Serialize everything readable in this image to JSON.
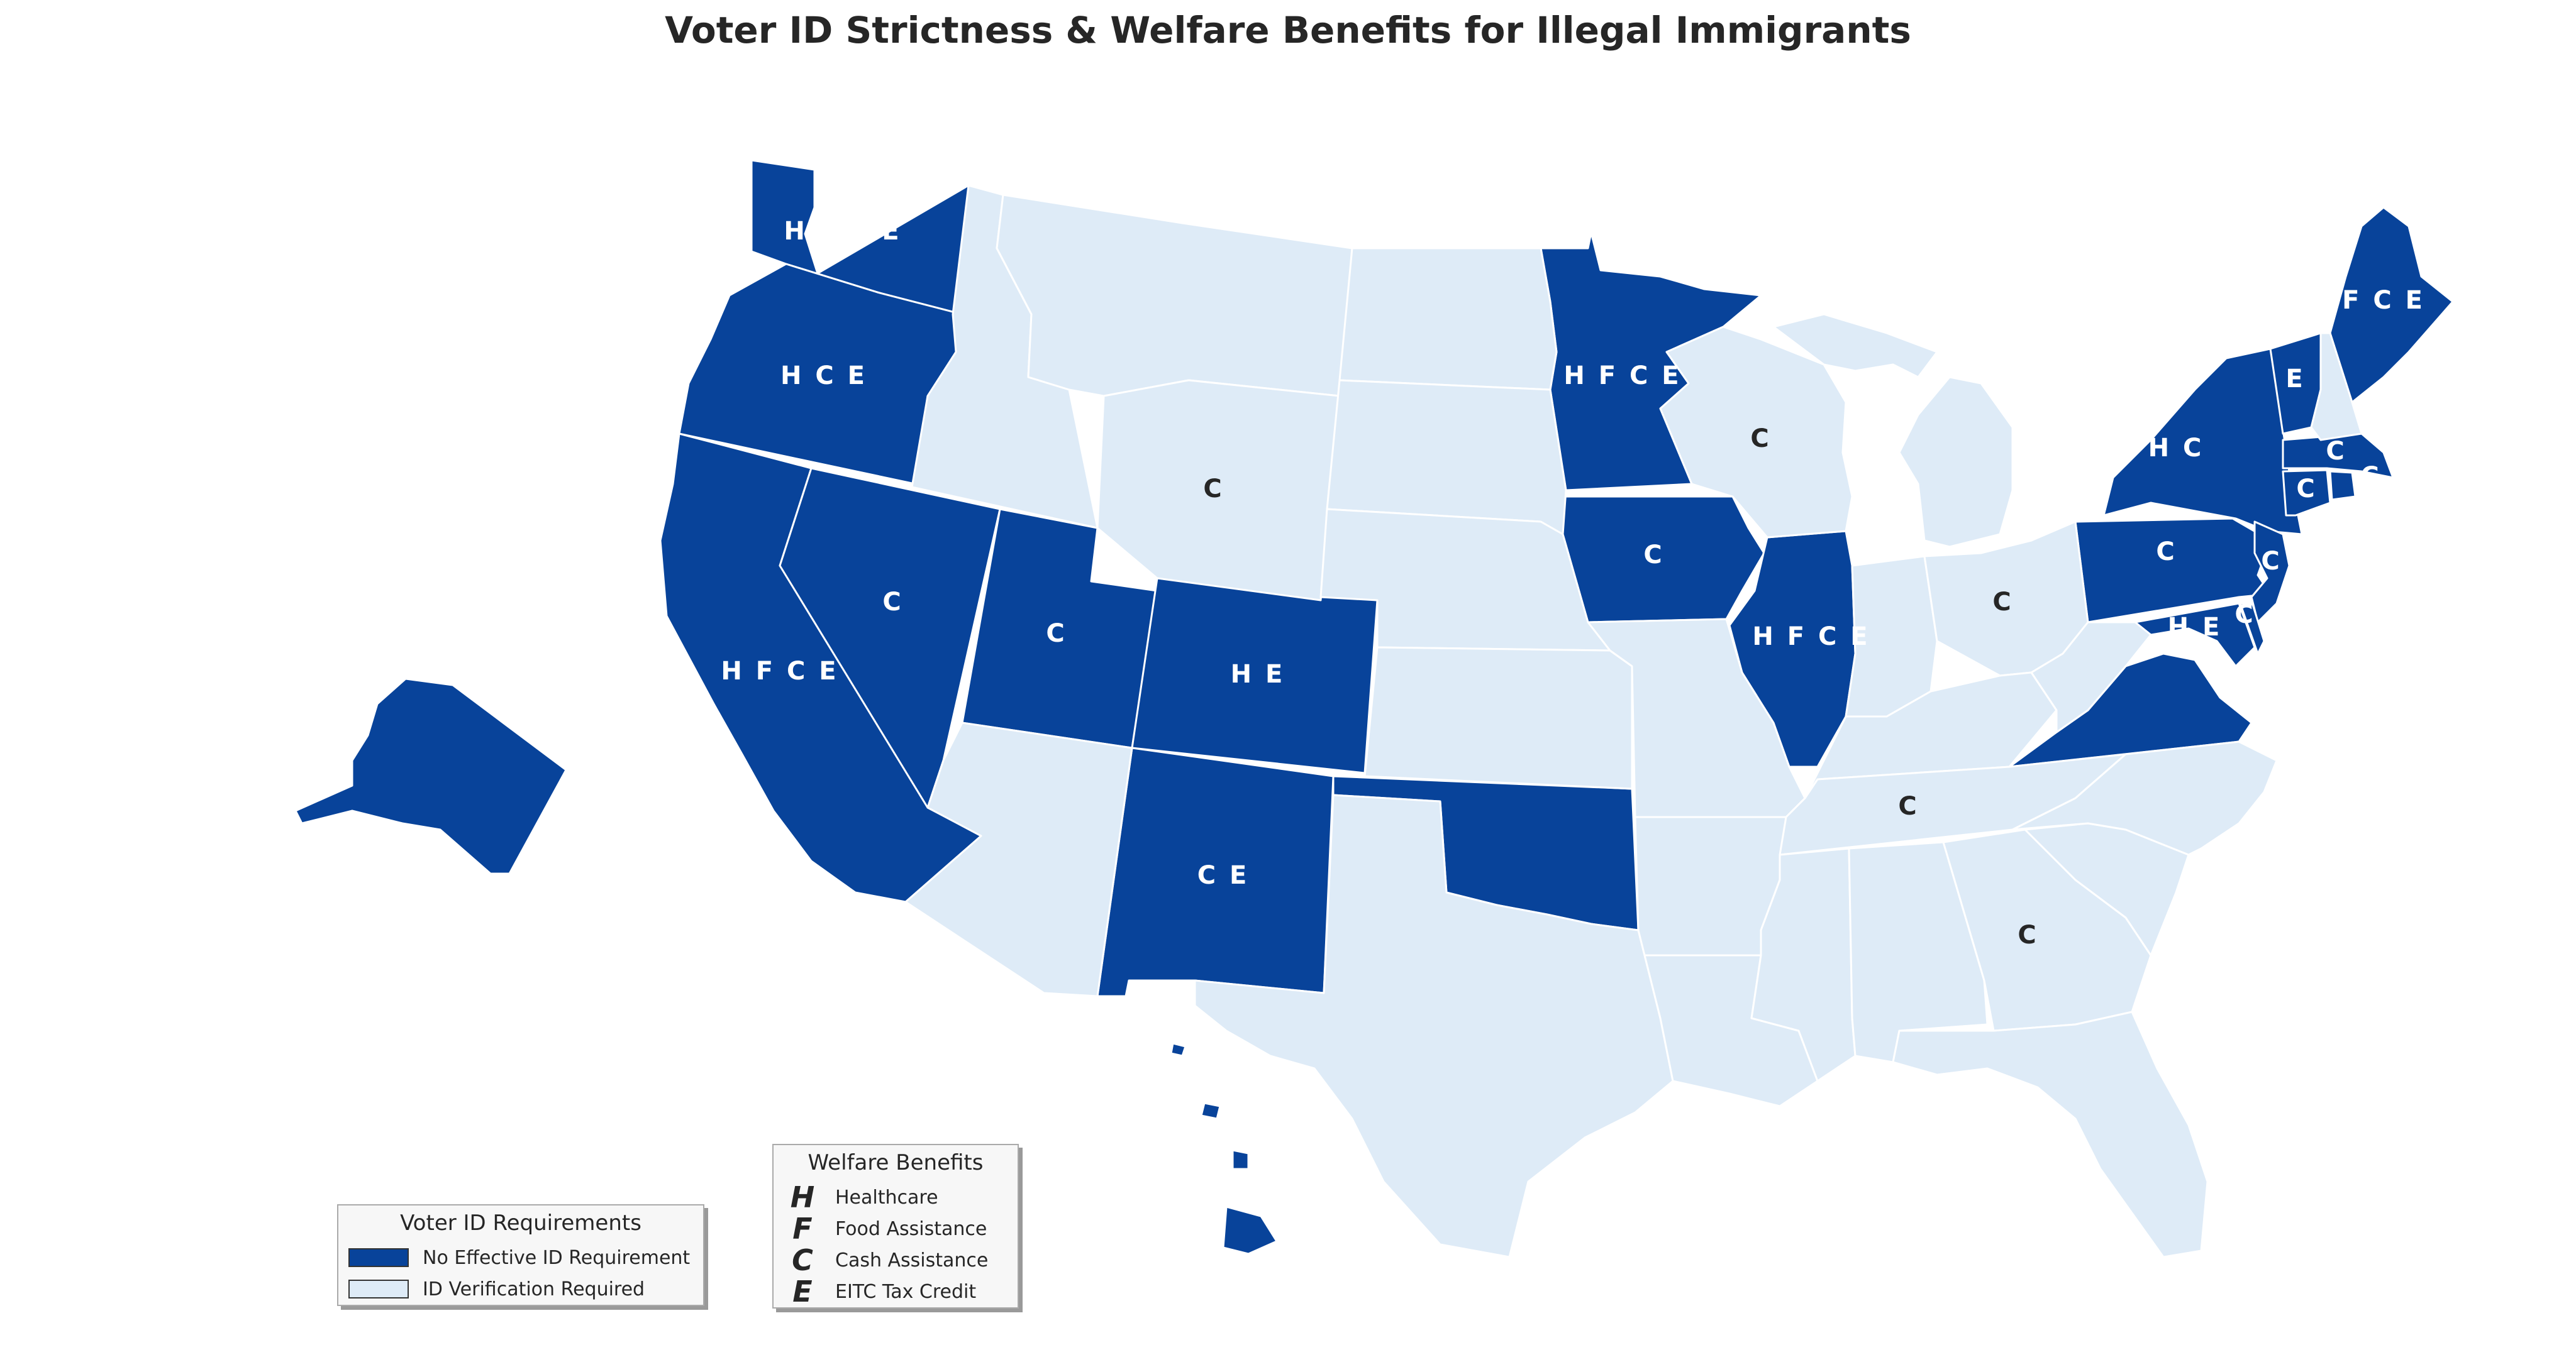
{
  "title": "Voter ID Strictness & Welfare Benefits for Illegal Immigrants",
  "colors": {
    "no_id": "#08439a",
    "id_required": "#deebf7",
    "border": "#ffffff"
  },
  "legend_voter": {
    "title": "Voter ID Requirements",
    "items": [
      {
        "label": "No Effective ID Requirement",
        "color": "#08439a"
      },
      {
        "label": "ID Verification Required",
        "color": "#deebf7"
      }
    ]
  },
  "legend_welfare": {
    "title": "Welfare Benefits",
    "items": [
      {
        "letter": "H",
        "label": "Healthcare"
      },
      {
        "letter": "F",
        "label": "Food Assistance"
      },
      {
        "letter": "C",
        "label": "Cash Assistance"
      },
      {
        "letter": "E",
        "label": "EITC Tax Credit"
      }
    ]
  },
  "states": [
    {
      "id": "WA",
      "category": "no_id",
      "benefits": "H F C E"
    },
    {
      "id": "OR",
      "category": "no_id",
      "benefits": "H C E"
    },
    {
      "id": "CA",
      "category": "no_id",
      "benefits": "H F C E"
    },
    {
      "id": "NV",
      "category": "no_id",
      "benefits": "C"
    },
    {
      "id": "UT",
      "category": "no_id",
      "benefits": "C"
    },
    {
      "id": "CO",
      "category": "no_id",
      "benefits": "H E"
    },
    {
      "id": "NM",
      "category": "no_id",
      "benefits": "C E"
    },
    {
      "id": "OK",
      "category": "no_id",
      "benefits": ""
    },
    {
      "id": "MN",
      "category": "no_id",
      "benefits": "H F C E"
    },
    {
      "id": "IA",
      "category": "no_id",
      "benefits": "C"
    },
    {
      "id": "IL",
      "category": "no_id",
      "benefits": "H F C E"
    },
    {
      "id": "NY",
      "category": "no_id",
      "benefits": "H C"
    },
    {
      "id": "PA",
      "category": "no_id",
      "benefits": "C"
    },
    {
      "id": "VT",
      "category": "no_id",
      "benefits": "E"
    },
    {
      "id": "ME",
      "category": "no_id",
      "benefits": "F C E"
    },
    {
      "id": "MA",
      "category": "no_id",
      "benefits": "C"
    },
    {
      "id": "CT",
      "category": "no_id",
      "benefits": "C"
    },
    {
      "id": "RI",
      "category": "no_id",
      "benefits": "C"
    },
    {
      "id": "NJ",
      "category": "no_id",
      "benefits": "C"
    },
    {
      "id": "MD",
      "category": "no_id",
      "benefits": "H E"
    },
    {
      "id": "DE",
      "category": "no_id",
      "benefits": "C"
    },
    {
      "id": "VA",
      "category": "no_id",
      "benefits": ""
    },
    {
      "id": "AK",
      "category": "no_id",
      "benefits": ""
    },
    {
      "id": "HI",
      "category": "no_id",
      "benefits": ""
    },
    {
      "id": "ID",
      "category": "id_required",
      "benefits": ""
    },
    {
      "id": "MT",
      "category": "id_required",
      "benefits": ""
    },
    {
      "id": "WY",
      "category": "id_required",
      "benefits": "C"
    },
    {
      "id": "ND",
      "category": "id_required",
      "benefits": ""
    },
    {
      "id": "SD",
      "category": "id_required",
      "benefits": ""
    },
    {
      "id": "NE",
      "category": "id_required",
      "benefits": ""
    },
    {
      "id": "KS",
      "category": "id_required",
      "benefits": ""
    },
    {
      "id": "AZ",
      "category": "id_required",
      "benefits": ""
    },
    {
      "id": "TX",
      "category": "id_required",
      "benefits": ""
    },
    {
      "id": "MO",
      "category": "id_required",
      "benefits": ""
    },
    {
      "id": "AR",
      "category": "id_required",
      "benefits": ""
    },
    {
      "id": "LA",
      "category": "id_required",
      "benefits": ""
    },
    {
      "id": "WI",
      "category": "id_required",
      "benefits": "C"
    },
    {
      "id": "MI",
      "category": "id_required",
      "benefits": ""
    },
    {
      "id": "IN",
      "category": "id_required",
      "benefits": ""
    },
    {
      "id": "OH",
      "category": "id_required",
      "benefits": "C"
    },
    {
      "id": "KY",
      "category": "id_required",
      "benefits": ""
    },
    {
      "id": "TN",
      "category": "id_required",
      "benefits": "C"
    },
    {
      "id": "MS",
      "category": "id_required",
      "benefits": ""
    },
    {
      "id": "AL",
      "category": "id_required",
      "benefits": ""
    },
    {
      "id": "GA",
      "category": "id_required",
      "benefits": "C"
    },
    {
      "id": "FL",
      "category": "id_required",
      "benefits": ""
    },
    {
      "id": "SC",
      "category": "id_required",
      "benefits": ""
    },
    {
      "id": "NC",
      "category": "id_required",
      "benefits": ""
    },
    {
      "id": "WV",
      "category": "id_required",
      "benefits": ""
    },
    {
      "id": "NH",
      "category": "id_required",
      "benefits": ""
    }
  ]
}
